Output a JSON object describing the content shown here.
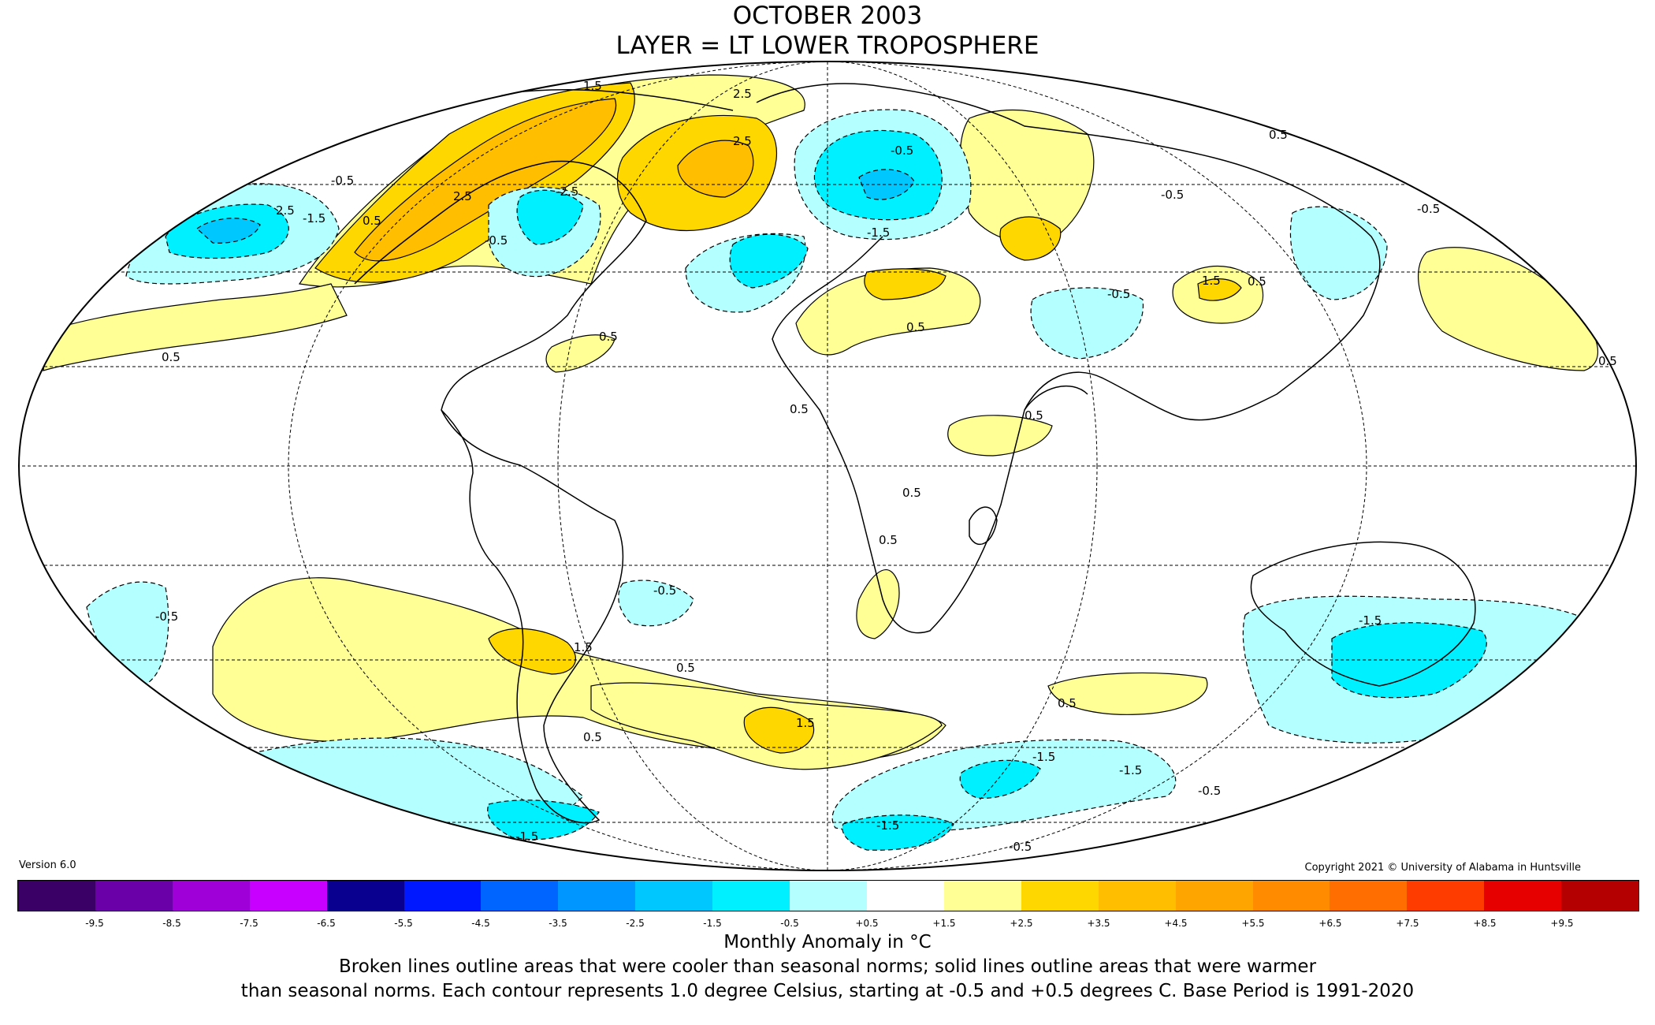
{
  "title": {
    "line1": "OCTOBER 2003",
    "line2": "LAYER = LT LOWER TROPOSPHERE"
  },
  "version": "Version 6.0",
  "copyright": "Copyright 2021 © University of Alabama in Huntsville",
  "legend": {
    "colors": [
      "#3b0066",
      "#6a00a8",
      "#a000d8",
      "#c800ff",
      "#0a008f",
      "#0018ff",
      "#0064ff",
      "#0096ff",
      "#00c8ff",
      "#00f0ff",
      "#b4ffff",
      "#ffffff",
      "#ffff96",
      "#ffd700",
      "#ffbe00",
      "#ffa500",
      "#ff8c00",
      "#ff6e00",
      "#ff3c00",
      "#e60000",
      "#b40000"
    ],
    "ticks": [
      "-9.5",
      "-8.5",
      "-7.5",
      "-6.5",
      "-5.5",
      "-4.5",
      "-3.5",
      "-2.5",
      "-1.5",
      "-0.5",
      "+0.5",
      "+1.5",
      "+2.5",
      "+3.5",
      "+4.5",
      "+5.5",
      "+6.5",
      "+7.5",
      "+8.5",
      "+9.5"
    ],
    "unit_label": "Monthly Anomaly in °C"
  },
  "notes": {
    "line1": "Broken lines outline areas that were cooler than seasonal norms; solid lines outline areas that were warmer",
    "line2": "than seasonal norms. Each contour represents 1.0 degree Celsius, starting at -0.5 and +0.5 degrees C. Base Period is 1991-2020"
  },
  "map": {
    "projection": "Mollweide",
    "contour_labels": [
      "1.5",
      "2.5",
      "2.5",
      "2.5",
      "2.5",
      "0.5",
      "0.5",
      "-0.5",
      "-0.5",
      "-1.5",
      "-2.5",
      "-0.5",
      "-1.5",
      "0.5",
      "0.5",
      "0.5",
      "0.5",
      "0.5",
      "1.5",
      "0.5",
      "-0.5",
      "-0.5",
      "-0.5",
      "0.5",
      "0.5",
      "0.5",
      "-0.5",
      "0.5",
      "1.5",
      "1.5",
      "0.5",
      "-0.5",
      "-1.5",
      "0.5",
      "-1.5",
      "-1.5",
      "-0.5",
      "-1.5",
      "-0.5",
      "-1.5"
    ]
  }
}
